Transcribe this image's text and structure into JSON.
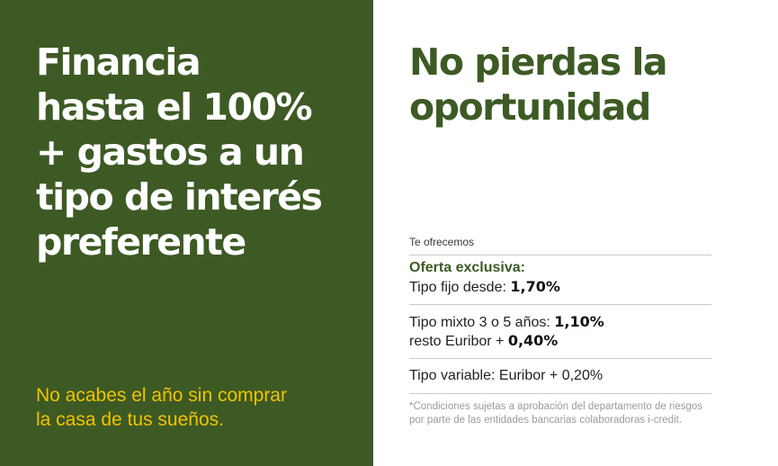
{
  "left": {
    "headline_lines": [
      "Financia",
      "hasta el 100%",
      "+ gastos a un",
      "tipo de interés",
      "preferente"
    ],
    "tagline_lines": [
      "No acabes el año sin comprar",
      "la casa de tus sueños."
    ]
  },
  "right": {
    "title_lines": [
      "No pierdas la",
      "oportunidad"
    ],
    "intro": "Te ofrecemos",
    "offer_title": "Oferta exclusiva:",
    "fixed": {
      "label": "Tipo fijo desde: ",
      "value": "1,70%"
    },
    "mixed": {
      "label": "Tipo mixto 3 o 5 años: ",
      "value": "1,10%",
      "rest_label": "resto Euribor + ",
      "rest_value": "0,40%"
    },
    "variable": {
      "text": "Tipo variable: Euribor + 0,20%"
    },
    "footnote_lines": [
      "*Condiciones sujetas a aprobación del departamento de riesgos",
      "por parte de las entidades bancarias colaboradoras i-credit."
    ]
  },
  "colors": {
    "green": "#3d5a24",
    "yellow": "#f2c200",
    "white": "#ffffff"
  }
}
